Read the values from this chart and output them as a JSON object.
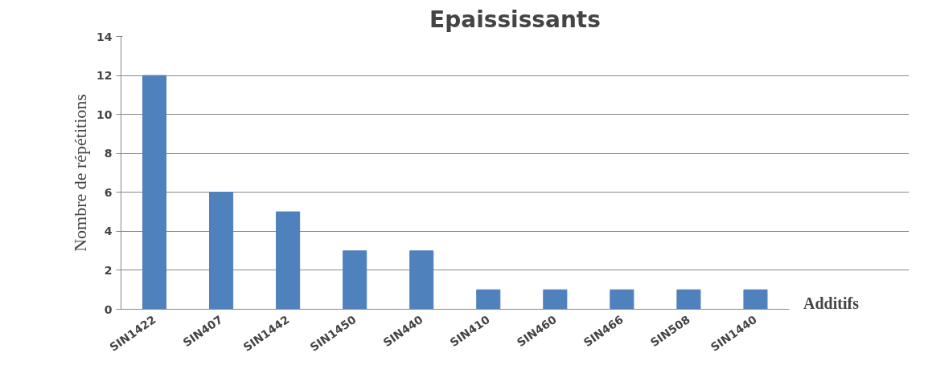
{
  "chart_data": {
    "type": "bar",
    "title": "Epaississants",
    "xlabel": "Additifs",
    "ylabel": "Nombre de répétitions",
    "categories": [
      "SIN1422",
      "SIN407",
      "SIN1442",
      "SIN1450",
      "SIN440",
      "SIN410",
      "SIN460",
      "SIN466",
      "SIN508",
      "SIN1440"
    ],
    "values": [
      12,
      6,
      5,
      3,
      3,
      1,
      1,
      1,
      1,
      1
    ],
    "color": "#4f81bd",
    "ylim": [
      0,
      14
    ],
    "yticks": [
      0,
      2,
      4,
      6,
      8,
      10,
      12,
      14
    ],
    "grid": "y"
  }
}
